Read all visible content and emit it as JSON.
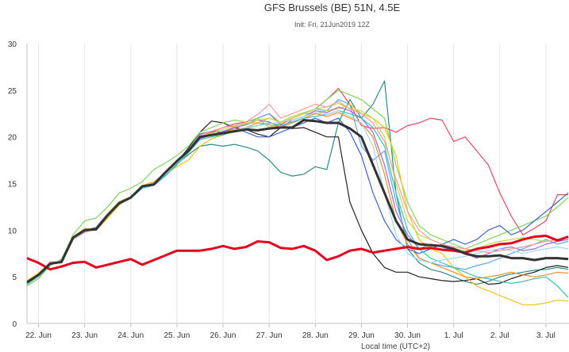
{
  "chart_data": {
    "type": "line",
    "title": "GFS Brussels (BE) 51N, 4.5E",
    "subtitle": "Init: Fri, 21Jun2019 12Z",
    "xlabel": "Local time (UTC+2)",
    "ylabel": "",
    "ylim": [
      0,
      30
    ],
    "yticks": [
      0,
      5,
      10,
      15,
      20,
      25,
      30
    ],
    "xlim": [
      0.75,
      12.5
    ],
    "xticks": [
      {
        "x": 1,
        "label": "22. Jun"
      },
      {
        "x": 2,
        "label": "23. Jun"
      },
      {
        "x": 3,
        "label": "24. Jun"
      },
      {
        "x": 4,
        "label": "25. Jun"
      },
      {
        "x": 5,
        "label": "26. Jun"
      },
      {
        "x": 6,
        "label": "27. Jun"
      },
      {
        "x": 7,
        "label": "28. Jun"
      },
      {
        "x": 8,
        "label": "29. Jun"
      },
      {
        "x": 9,
        "label": "30. Jun"
      },
      {
        "x": 10,
        "label": "1. Jul"
      },
      {
        "x": 11,
        "label": "2. Jul"
      },
      {
        "x": 12,
        "label": "3. Jul"
      }
    ],
    "grid": "vertical",
    "x_step": 0.25,
    "series": [
      {
        "color": "#e4001c",
        "bold": true,
        "values": [
          7.0,
          6.5,
          5.8,
          6.1,
          6.5,
          6.6,
          6.0,
          6.3,
          6.6,
          6.9,
          6.3,
          6.8,
          7.3,
          7.8,
          7.8,
          7.8,
          8.0,
          8.3,
          8.0,
          8.2,
          8.8,
          8.7,
          8.1,
          8.0,
          8.3,
          7.8,
          6.8,
          7.2,
          7.8,
          8.0,
          7.6,
          7.8,
          8.0,
          8.2,
          8.0,
          8.1,
          7.9,
          7.8,
          7.6,
          8.0,
          8.2,
          8.5,
          8.6,
          9.0,
          9.3,
          9.4,
          8.9,
          9.3
        ]
      },
      {
        "color": "#333333",
        "bold": true,
        "values": [
          4.4,
          5.2,
          6.4,
          6.6,
          9.2,
          10.0,
          10.1,
          11.6,
          12.9,
          13.5,
          14.7,
          14.9,
          16.2,
          17.4,
          18.5,
          20.0,
          20.2,
          20.4,
          20.6,
          20.8,
          20.7,
          20.9,
          21.0,
          21.0,
          21.8,
          21.7,
          21.5,
          21.5,
          20.9,
          20.0,
          17.0,
          14.0,
          11.0,
          9.0,
          8.5,
          8.4,
          8.3,
          8.0,
          7.5,
          7.2,
          7.2,
          7.3,
          7.0,
          7.0,
          6.8,
          7.0,
          7.0,
          6.9
        ]
      },
      {
        "color": "#2e8b82",
        "values": [
          4.3,
          5.0,
          6.4,
          6.6,
          9.1,
          10.0,
          10.1,
          11.7,
          12.9,
          13.5,
          14.6,
          15.1,
          16.0,
          17.1,
          18.1,
          19.0,
          19.2,
          19.0,
          19.2,
          18.9,
          18.5,
          17.5,
          16.2,
          15.8,
          16.0,
          16.8,
          16.5,
          21.5,
          24.0,
          22.0,
          23.5,
          26.0,
          14.0,
          8.0,
          6.5,
          5.8,
          5.5,
          5.0,
          4.5,
          4.2,
          4.5,
          5.0,
          5.3,
          5.5,
          5.7,
          5.8,
          6.0,
          5.8
        ]
      },
      {
        "color": "#222222",
        "values": [
          4.2,
          5.1,
          6.5,
          6.5,
          9.1,
          10.1,
          10.0,
          11.6,
          12.8,
          13.6,
          14.7,
          15.1,
          16.0,
          17.3,
          18.8,
          20.5,
          21.7,
          21.5,
          21.0,
          20.8,
          20.3,
          20.0,
          21.0,
          20.9,
          21.0,
          20.5,
          20.0,
          20.0,
          13.0,
          10.0,
          7.5,
          6.0,
          5.5,
          5.5,
          5.0,
          4.8,
          4.6,
          4.5,
          4.6,
          4.8,
          4.2,
          4.3,
          4.8,
          5.2,
          5.5,
          6.0,
          6.2,
          6.0
        ]
      },
      {
        "color": "#e8475f",
        "values": [
          4.5,
          5.3,
          6.4,
          6.7,
          9.0,
          9.8,
          10.1,
          11.5,
          12.7,
          13.6,
          14.6,
          15.1,
          16.0,
          17.4,
          18.6,
          20.0,
          20.5,
          21.0,
          21.4,
          21.6,
          22.0,
          22.5,
          21.3,
          22.0,
          22.5,
          23.0,
          24.0,
          25.2,
          23.5,
          21.2,
          20.9,
          21.0,
          20.5,
          21.2,
          21.5,
          22.0,
          21.8,
          19.5,
          20.0,
          18.5,
          17.0,
          14.0,
          11.5,
          9.5,
          10.2,
          11.0,
          13.8,
          13.8
        ]
      },
      {
        "color": "#5da9e9",
        "values": [
          4.2,
          5.0,
          6.3,
          6.8,
          9.2,
          10.1,
          10.2,
          11.8,
          13.0,
          13.5,
          14.6,
          15.0,
          15.9,
          17.3,
          18.5,
          20.0,
          20.3,
          20.5,
          21.0,
          21.3,
          22.0,
          22.5,
          21.5,
          22.0,
          22.5,
          23.0,
          22.8,
          24.0,
          23.5,
          19.0,
          17.5,
          18.5,
          13.0,
          9.0,
          7.0,
          6.5,
          6.2,
          6.0,
          5.8,
          6.2,
          6.5,
          7.0,
          7.5,
          8.0,
          8.5,
          9.0,
          8.5,
          8.8
        ]
      },
      {
        "color": "#7fd35e",
        "values": [
          4.0,
          4.8,
          6.2,
          6.9,
          9.5,
          11.0,
          11.3,
          12.5,
          14.0,
          14.5,
          15.2,
          16.5,
          17.2,
          18.0,
          19.0,
          20.5,
          21.0,
          21.5,
          21.8,
          21.6,
          22.0,
          21.0,
          21.5,
          22.0,
          22.5,
          23.0,
          24.0,
          25.0,
          24.5,
          24.0,
          23.0,
          22.0,
          17.0,
          13.0,
          10.5,
          9.5,
          9.0,
          8.5,
          8.0,
          8.5,
          9.0,
          9.5,
          10.0,
          10.5,
          11.0,
          11.5,
          12.5,
          13.5
        ]
      },
      {
        "color": "#f0c419",
        "values": [
          4.6,
          5.4,
          6.5,
          6.6,
          9.3,
          9.9,
          10.0,
          11.3,
          12.7,
          13.6,
          14.8,
          15.2,
          16.1,
          16.8,
          17.5,
          19.0,
          19.8,
          20.2,
          21.0,
          21.5,
          21.5,
          22.0,
          21.5,
          22.0,
          22.5,
          22.5,
          22.8,
          23.0,
          23.5,
          22.5,
          22.0,
          21.0,
          18.0,
          12.0,
          9.0,
          8.0,
          7.5,
          6.0,
          5.0,
          4.0,
          3.5,
          3.0,
          2.5,
          2.0,
          2.0,
          2.2,
          2.5,
          2.4
        ]
      },
      {
        "color": "#4062c8",
        "values": [
          4.4,
          5.2,
          6.6,
          6.6,
          9.1,
          10.0,
          10.3,
          11.8,
          13.0,
          13.4,
          14.6,
          15.0,
          16.2,
          17.5,
          18.5,
          20.3,
          20.6,
          20.5,
          21.0,
          20.5,
          20.0,
          20.0,
          20.5,
          21.0,
          21.5,
          22.0,
          21.5,
          22.0,
          20.5,
          18.0,
          14.0,
          11.0,
          9.0,
          8.0,
          7.5,
          8.0,
          8.5,
          9.0,
          8.5,
          9.0,
          10.0,
          10.5,
          9.5,
          10.0,
          11.0,
          12.0,
          13.0,
          14.0
        ]
      },
      {
        "color": "#9b6ad6",
        "values": [
          4.3,
          5.1,
          6.4,
          6.5,
          9.0,
          10.0,
          10.1,
          11.6,
          12.9,
          13.5,
          14.7,
          15.0,
          16.0,
          17.2,
          18.4,
          19.8,
          20.2,
          20.6,
          21.0,
          21.3,
          21.8,
          21.6,
          21.0,
          21.8,
          22.2,
          22.8,
          22.6,
          23.2,
          22.8,
          22.0,
          20.5,
          17.0,
          12.0,
          9.5,
          8.0,
          8.5,
          8.2,
          7.8,
          7.5,
          7.0,
          7.5,
          8.0,
          8.2,
          7.8,
          8.0,
          8.5,
          8.8,
          9.0
        ]
      },
      {
        "color": "#f28c28",
        "values": [
          4.5,
          5.3,
          6.5,
          6.7,
          9.2,
          10.0,
          10.2,
          11.7,
          12.9,
          13.6,
          14.7,
          15.0,
          16.1,
          17.3,
          18.6,
          20.1,
          20.3,
          20.5,
          20.8,
          21.0,
          21.5,
          21.3,
          21.0,
          21.5,
          22.0,
          22.5,
          22.2,
          22.6,
          22.0,
          21.5,
          20.0,
          16.0,
          11.0,
          8.5,
          7.0,
          6.5,
          6.0,
          5.5,
          5.0,
          4.8,
          5.0,
          5.2,
          5.5,
          5.2,
          5.0,
          5.2,
          5.5,
          5.4
        ]
      },
      {
        "color": "#36c2b4",
        "values": [
          4.2,
          5.0,
          6.3,
          6.6,
          9.1,
          10.1,
          10.0,
          11.6,
          12.8,
          13.4,
          14.5,
          14.8,
          15.8,
          17.0,
          18.3,
          19.7,
          20.0,
          20.2,
          20.6,
          20.9,
          21.2,
          21.5,
          21.2,
          21.6,
          22.0,
          22.2,
          22.4,
          22.8,
          22.5,
          22.0,
          21.0,
          19.0,
          14.0,
          10.0,
          8.0,
          7.0,
          6.5,
          6.0,
          5.5,
          5.0,
          4.8,
          4.5,
          4.3,
          4.5,
          4.8,
          5.0,
          4.0,
          2.8
        ]
      },
      {
        "color": "#bada55",
        "values": [
          4.4,
          5.1,
          6.4,
          6.6,
          9.3,
          10.2,
          10.1,
          11.8,
          13.1,
          13.6,
          14.6,
          15.1,
          16.2,
          17.4,
          18.5,
          20.0,
          20.4,
          20.8,
          21.1,
          21.4,
          21.8,
          22.0,
          21.6,
          22.2,
          22.6,
          23.0,
          23.2,
          23.6,
          23.0,
          22.8,
          22.0,
          20.0,
          15.0,
          11.0,
          9.5,
          9.0,
          8.5,
          8.0,
          7.8,
          8.0,
          8.5,
          8.8,
          9.0,
          9.2,
          9.0,
          8.8,
          9.0,
          9.2
        ]
      },
      {
        "color": "#a0d8ef",
        "values": [
          4.3,
          5.0,
          6.5,
          6.7,
          9.0,
          9.9,
          10.2,
          11.5,
          12.8,
          13.5,
          14.6,
          14.9,
          16.0,
          17.2,
          18.4,
          20.0,
          20.2,
          20.4,
          20.7,
          21.0,
          21.2,
          21.4,
          21.6,
          21.8,
          22.2,
          22.6,
          22.4,
          22.8,
          22.2,
          21.5,
          19.0,
          14.0,
          9.5,
          7.5,
          6.8,
          6.5,
          6.8,
          7.0,
          7.2,
          7.5,
          7.8,
          8.0,
          7.8,
          7.5,
          7.8,
          8.0,
          8.2,
          8.0
        ]
      },
      {
        "color": "#ff9999",
        "values": [
          4.5,
          5.2,
          6.6,
          6.6,
          9.2,
          10.1,
          10.1,
          11.7,
          13.0,
          13.5,
          14.7,
          15.1,
          16.1,
          17.4,
          18.6,
          20.2,
          20.6,
          21.0,
          21.2,
          21.6,
          22.4,
          23.5,
          22.0,
          22.5,
          23.0,
          23.5,
          23.2,
          23.8,
          23.0,
          22.5,
          21.5,
          19.5,
          15.5,
          12.0,
          10.0,
          9.0,
          8.5,
          8.2,
          8.0,
          7.8,
          7.6,
          7.8,
          8.0,
          8.2,
          8.5,
          8.8,
          9.0,
          9.2
        ]
      }
    ]
  }
}
